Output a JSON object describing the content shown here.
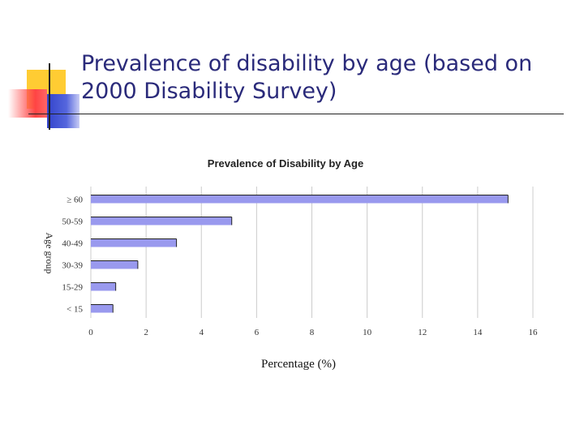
{
  "slide": {
    "title": "Prevalence of disability by age (based on 2000 Disability Survey)"
  },
  "colors": {
    "title": "#2a2a7a",
    "bar": "#9999ee",
    "bar_edge": "#222222",
    "grid": "#cccccc",
    "deco_yellow": "#ffcc33",
    "deco_red": "#ff4444",
    "deco_blue": "#3344cc"
  },
  "chart_data": {
    "type": "bar",
    "orientation": "horizontal",
    "title": "Prevalence of Disability by Age",
    "xlabel": "Percentage (%)",
    "ylabel": "Age group",
    "categories": [
      "≥ 60",
      "50-59",
      "40-49",
      "30-39",
      "15-29",
      "< 15"
    ],
    "values": [
      15.1,
      5.1,
      3.1,
      1.7,
      0.9,
      0.8
    ],
    "xlim": [
      0,
      16
    ],
    "xticks": [
      0,
      2,
      4,
      6,
      8,
      10,
      12,
      14,
      16
    ],
    "grid": "vertical"
  }
}
